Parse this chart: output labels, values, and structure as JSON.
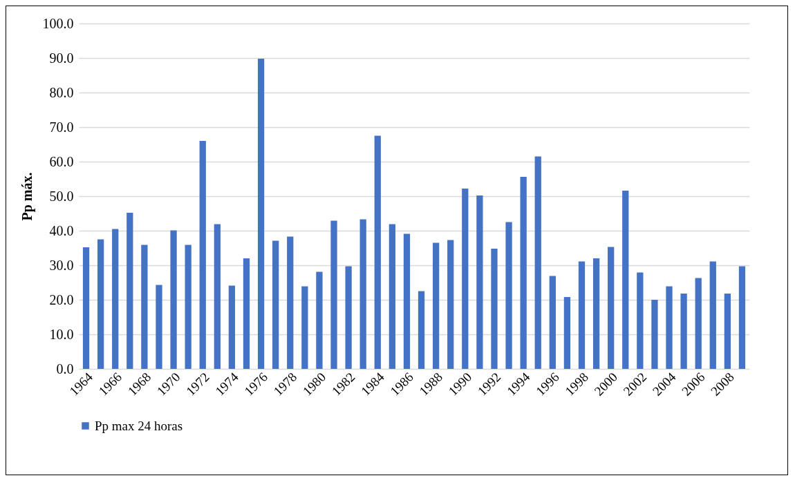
{
  "chart_data": {
    "type": "bar",
    "ylabel": "Pp máx.",
    "categories": [
      "1964",
      null,
      "1966",
      null,
      "1968",
      null,
      "1970",
      null,
      "1972",
      null,
      "1974",
      null,
      "1976",
      null,
      "1978",
      null,
      "1980",
      null,
      "1982",
      null,
      "1984",
      null,
      "1986",
      null,
      "1988",
      null,
      "1990",
      null,
      "1992",
      null,
      "1994",
      null,
      "1996",
      null,
      "1998",
      null,
      "2000",
      null,
      "2002",
      null,
      "2004",
      null,
      "2006",
      null,
      "2008",
      null
    ],
    "series": [
      {
        "name": "Pp max 24 horas",
        "color": "#4472c4",
        "values": [
          35.2,
          37.5,
          40.5,
          45.2,
          35.9,
          24.3,
          40.1,
          35.9,
          66.0,
          41.9,
          24.1,
          32.0,
          89.8,
          37.1,
          38.3,
          23.9,
          28.1,
          42.9,
          29.7,
          43.3,
          67.5,
          41.9,
          39.1,
          22.5,
          36.5,
          37.3,
          52.2,
          50.2,
          34.8,
          42.5,
          55.6,
          61.5,
          26.9,
          20.8,
          31.1,
          32.0,
          35.3,
          51.6,
          27.9,
          20.0,
          23.9,
          21.8,
          26.3,
          31.1,
          21.8,
          29.7
        ]
      }
    ],
    "ylim": [
      0,
      100
    ],
    "yticks": [
      {
        "value": 0,
        "label": "0.0"
      },
      {
        "value": 10,
        "label": "10.0"
      },
      {
        "value": 20,
        "label": "20.0"
      },
      {
        "value": 30,
        "label": "30.0"
      },
      {
        "value": 40,
        "label": "40.0"
      },
      {
        "value": 50,
        "label": "50.0"
      },
      {
        "value": 60,
        "label": "60.0"
      },
      {
        "value": 70,
        "label": "70.0"
      },
      {
        "value": 80,
        "label": "80.0"
      },
      {
        "value": 90,
        "label": "90.0"
      },
      {
        "value": 100,
        "label": "100.0"
      }
    ],
    "grid": "y",
    "legend": "bottom"
  }
}
